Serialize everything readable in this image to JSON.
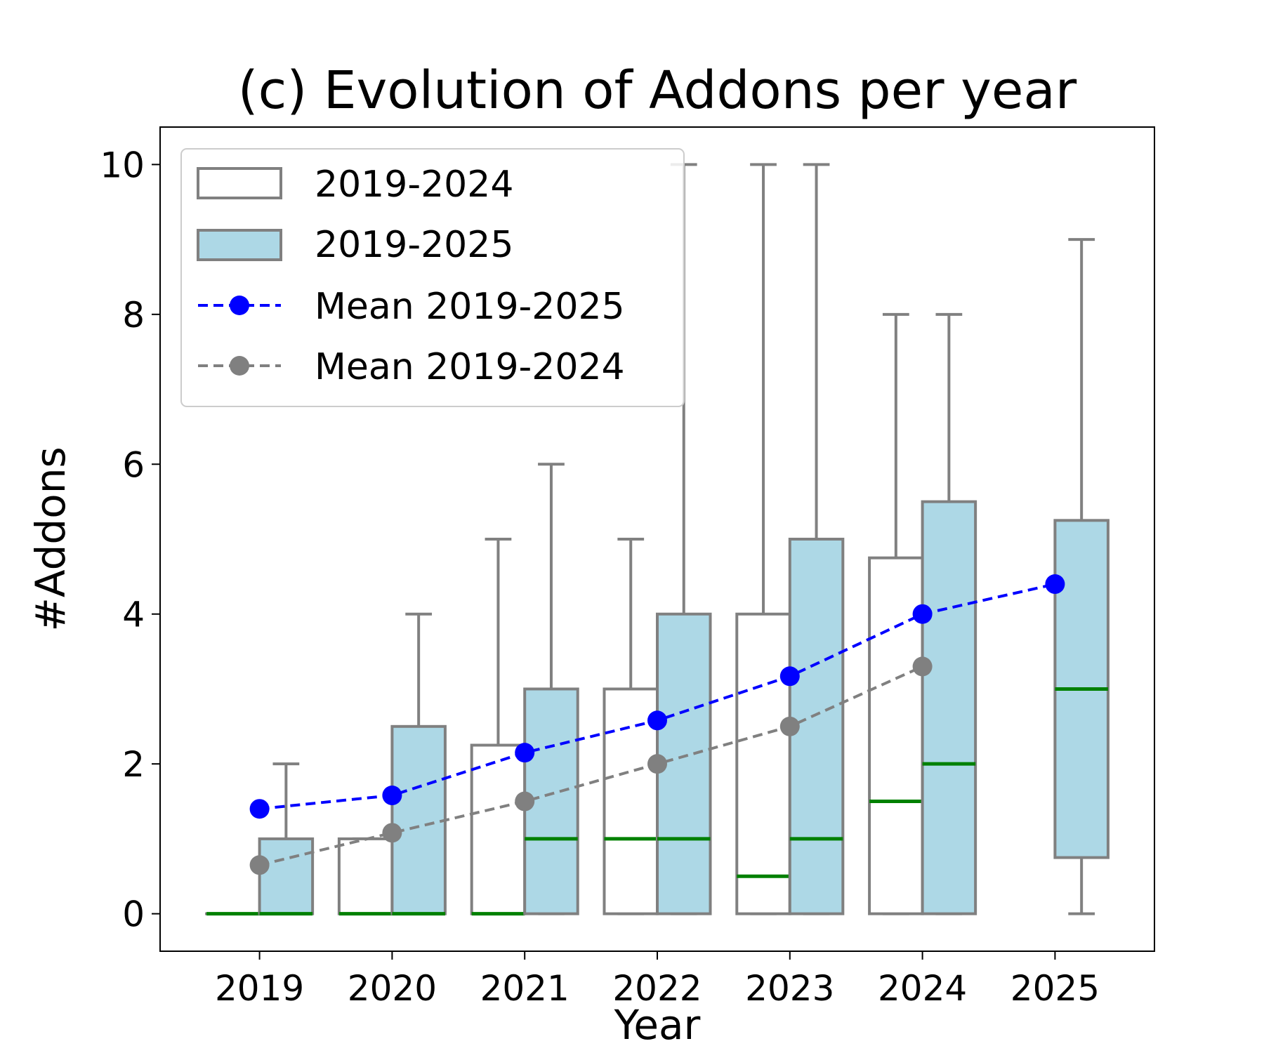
{
  "chart_data": {
    "type": "box",
    "title": "(c) Evolution of Addons per year",
    "xlabel": "Year",
    "ylabel": "#Addons",
    "categories": [
      "2019",
      "2020",
      "2021",
      "2022",
      "2023",
      "2024",
      "2025"
    ],
    "yticks": [
      "0",
      "2",
      "4",
      "6",
      "8",
      "10"
    ],
    "ylim": [
      -0.5,
      10.5
    ],
    "grid": false,
    "legend_position": "top-left",
    "legend": [
      "2019-2024",
      "2019-2025",
      "Mean 2019-2025",
      "Mean 2019-2024"
    ],
    "box_series": [
      {
        "name": "2019-2024",
        "fill": "#ffffff",
        "boxes": [
          {
            "year": "2019",
            "whislo": 0,
            "q1": 0,
            "median": 0,
            "q3": 0,
            "whishi": 0
          },
          {
            "year": "2020",
            "whislo": 0,
            "q1": 0,
            "median": 0,
            "q3": 1,
            "whishi": 1
          },
          {
            "year": "2021",
            "whislo": 0,
            "q1": 0,
            "median": 0,
            "q3": 2.25,
            "whishi": 5
          },
          {
            "year": "2022",
            "whislo": 0,
            "q1": 0,
            "median": 1,
            "q3": 3,
            "whishi": 5
          },
          {
            "year": "2023",
            "whislo": 0,
            "q1": 0,
            "median": 0.5,
            "q3": 4,
            "whishi": 10
          },
          {
            "year": "2024",
            "whislo": 0,
            "q1": 0,
            "median": 1.5,
            "q3": 4.75,
            "whishi": 8
          }
        ]
      },
      {
        "name": "2019-2025",
        "fill": "#add8e6",
        "boxes": [
          {
            "year": "2019",
            "whislo": 0,
            "q1": 0,
            "median": 0,
            "q3": 1,
            "whishi": 2
          },
          {
            "year": "2020",
            "whislo": 0,
            "q1": 0,
            "median": 0,
            "q3": 2.5,
            "whishi": 4
          },
          {
            "year": "2021",
            "whislo": 0,
            "q1": 0,
            "median": 1,
            "q3": 3,
            "whishi": 6
          },
          {
            "year": "2022",
            "whislo": 0,
            "q1": 0,
            "median": 1,
            "q3": 4,
            "whishi": 10
          },
          {
            "year": "2023",
            "whislo": 0,
            "q1": 0,
            "median": 1,
            "q3": 5,
            "whishi": 10
          },
          {
            "year": "2024",
            "whislo": 0,
            "q1": 0,
            "median": 2,
            "q3": 5.5,
            "whishi": 8
          },
          {
            "year": "2025",
            "whislo": 0,
            "q1": 0.75,
            "median": 3,
            "q3": 5.25,
            "whishi": 9
          }
        ]
      }
    ],
    "mean_series": [
      {
        "name": "Mean 2019-2025",
        "color": "#0000ff",
        "x": [
          "2019",
          "2020",
          "2021",
          "2022",
          "2023",
          "2024",
          "2025"
        ],
        "values": [
          1.4,
          1.58,
          2.15,
          2.58,
          3.17,
          4.0,
          4.4
        ]
      },
      {
        "name": "Mean 2019-2024",
        "color": "#808080",
        "x": [
          "2019",
          "2020",
          "2021",
          "2022",
          "2023",
          "2024"
        ],
        "values": [
          0.65,
          1.08,
          1.5,
          2.0,
          2.5,
          3.3
        ]
      }
    ],
    "colors": {
      "box_edge": "#808080",
      "median": "#008000"
    }
  }
}
